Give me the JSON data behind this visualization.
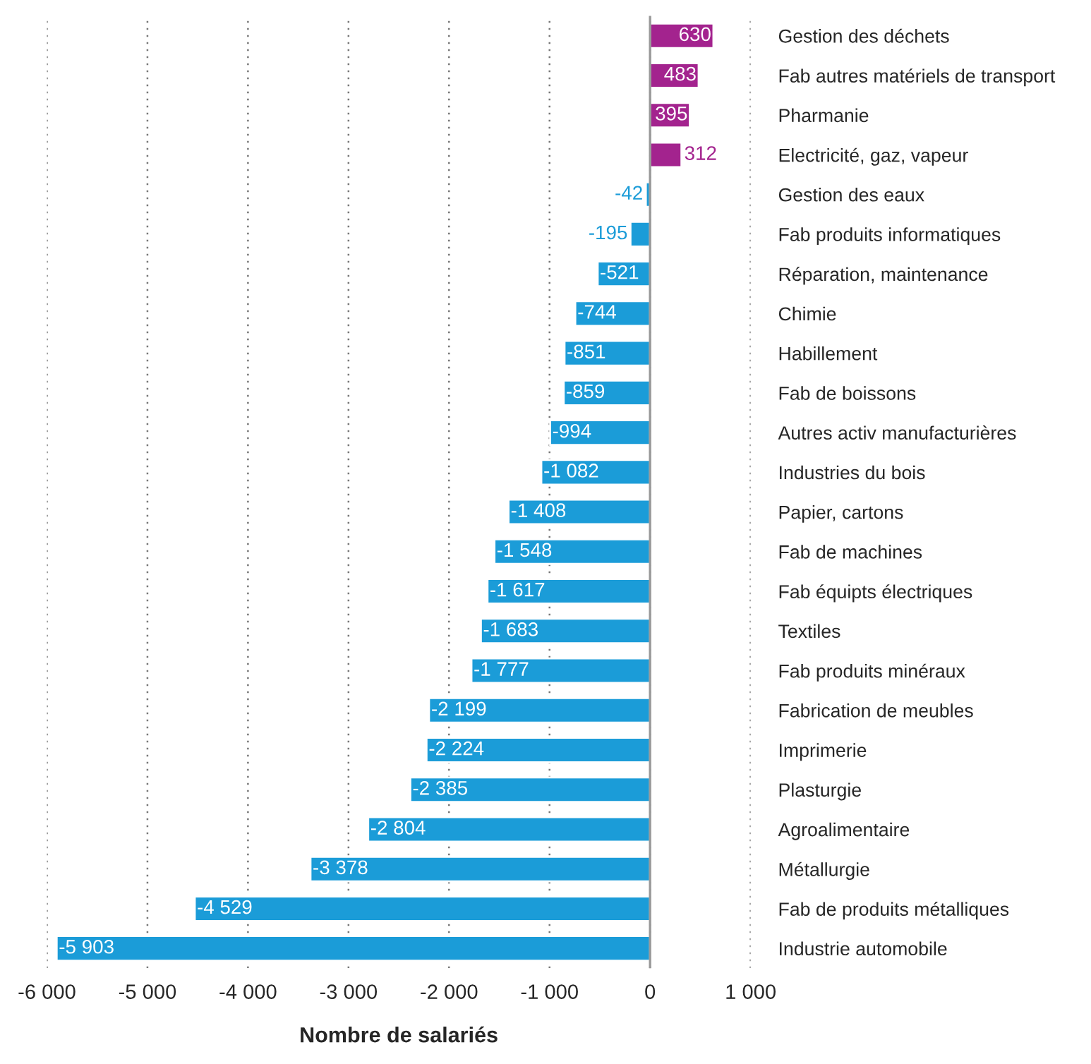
{
  "chart_data": {
    "type": "bar",
    "orientation": "horizontal",
    "xlabel": "Nombre de salariés",
    "categories": [
      "Gestion des déchets",
      "Fab autres matériels de transport",
      "Pharmanie",
      "Electricité, gaz, vapeur",
      "Gestion des eaux",
      "Fab produits informatiques",
      "Réparation, maintenance",
      "Chimie",
      "Habillement",
      "Fab de boissons",
      "Autres activ manufacturières",
      "Industries du bois",
      "Papier, cartons",
      "Fab de machines",
      "Fab équipts électriques",
      "Textiles",
      "Fab produits minéraux",
      "Fabrication de meubles",
      "Imprimerie",
      "Plasturgie",
      "Agroalimentaire",
      "Métallurgie",
      "Fab de produits métalliques",
      "Industrie automobile"
    ],
    "values": [
      630,
      483,
      395,
      312,
      -42,
      -195,
      -521,
      -744,
      -851,
      -859,
      -994,
      -1082,
      -1408,
      -1548,
      -1617,
      -1683,
      -1777,
      -2199,
      -2224,
      -2385,
      -2804,
      -3378,
      -4529,
      -5903
    ],
    "value_labels": [
      "630",
      "483",
      "395",
      "312",
      "-42",
      "-195",
      "-521",
      "-744",
      "-851",
      "-859",
      "-994",
      "-1 082",
      "-1 408",
      "-1 548",
      "-1 617",
      "-1 683",
      "-1 777",
      "-2 199",
      "-2 224",
      "-2 385",
      "-2 804",
      "-3 378",
      "-4 529",
      "-5 903"
    ],
    "colors": [
      "#a3238e",
      "#a3238e",
      "#a3238e",
      "#a3238e",
      "#1b9cd8",
      "#1b9cd8",
      "#1b9cd8",
      "#1b9cd8",
      "#1b9cd8",
      "#1b9cd8",
      "#1b9cd8",
      "#1b9cd8",
      "#1b9cd8",
      "#1b9cd8",
      "#1b9cd8",
      "#1b9cd8",
      "#1b9cd8",
      "#1b9cd8",
      "#1b9cd8",
      "#1b9cd8",
      "#1b9cd8",
      "#1b9cd8",
      "#1b9cd8",
      "#1b9cd8"
    ],
    "xlim": [
      -6000,
      1000
    ],
    "xticks": [
      {
        "value": -6000,
        "label": "-6 000"
      },
      {
        "value": -5000,
        "label": "-5 000"
      },
      {
        "value": -4000,
        "label": "-4 000"
      },
      {
        "value": -3000,
        "label": "-3 000"
      },
      {
        "value": -2000,
        "label": "-2 000"
      },
      {
        "value": -1000,
        "label": "-1 000"
      },
      0,
      {
        "value": 1000,
        "label": "1 000"
      }
    ],
    "grid": "x",
    "ref_lines": [
      {
        "axis": "x",
        "value": 0,
        "color": "#999999",
        "line_style": "solid"
      }
    ],
    "legend": false
  }
}
